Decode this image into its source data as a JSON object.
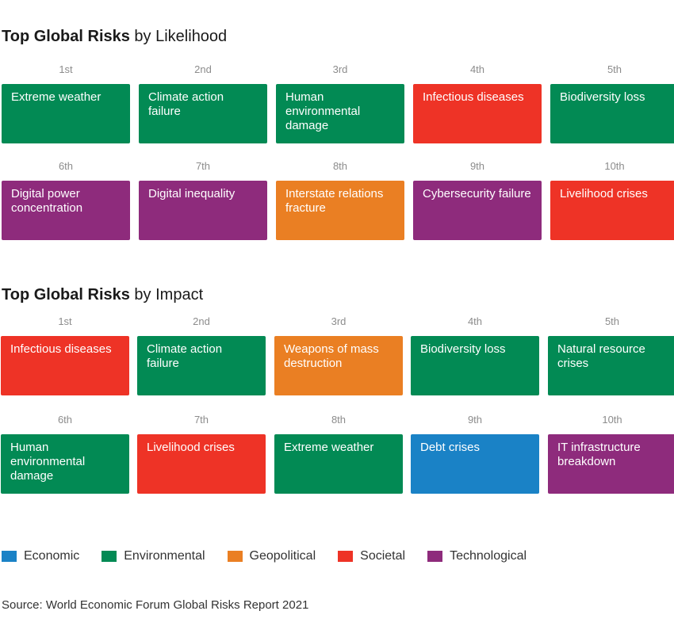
{
  "colors": {
    "Economic": "#1a82c6",
    "Environmental": "#028a54",
    "Geopolitical": "#ea7f23",
    "Societal": "#ee3326",
    "Technological": "#8e2b7c"
  },
  "likelihood": {
    "title_bold": "Top Global Risks",
    "title_rest": " by Likelihood",
    "ranks": [
      "1st",
      "2nd",
      "3rd",
      "4th",
      "5th",
      "6th",
      "7th",
      "8th",
      "9th",
      "10th"
    ],
    "risks": [
      {
        "label": "Extreme weather",
        "category": "Environmental"
      },
      {
        "label": "Climate action failure",
        "category": "Environmental"
      },
      {
        "label": "Human environmental damage",
        "category": "Environmental"
      },
      {
        "label": "Infectious diseases",
        "category": "Societal"
      },
      {
        "label": "Biodiversity loss",
        "category": "Environmental"
      },
      {
        "label": "Digital power concentration",
        "category": "Technological"
      },
      {
        "label": "Digital inequality",
        "category": "Technological"
      },
      {
        "label": "Interstate relations fracture",
        "category": "Geopolitical"
      },
      {
        "label": "Cybersecurity failure",
        "category": "Technological"
      },
      {
        "label": "Livelihood crises",
        "category": "Societal"
      }
    ]
  },
  "impact": {
    "title_bold": "Top Global Risks",
    "title_rest": " by Impact",
    "ranks": [
      "1st",
      "2nd",
      "3rd",
      "4th",
      "5th",
      "6th",
      "7th",
      "8th",
      "9th",
      "10th"
    ],
    "risks": [
      {
        "label": "Infectious diseases",
        "category": "Societal"
      },
      {
        "label": "Climate action failure",
        "category": "Environmental"
      },
      {
        "label": "Weapons of mass destruction",
        "category": "Geopolitical"
      },
      {
        "label": "Biodiversity loss",
        "category": "Environmental"
      },
      {
        "label": "Natural resource crises",
        "category": "Environmental"
      },
      {
        "label": "Human environmental damage",
        "category": "Environmental"
      },
      {
        "label": "Livelihood crises",
        "category": "Societal"
      },
      {
        "label": "Extreme weather",
        "category": "Environmental"
      },
      {
        "label": "Debt crises",
        "category": "Economic"
      },
      {
        "label": "IT infrastructure breakdown",
        "category": "Technological"
      }
    ]
  },
  "legend": [
    "Economic",
    "Environmental",
    "Geopolitical",
    "Societal",
    "Technological"
  ],
  "source": "Source: World Economic Forum Global Risks Report 2021"
}
